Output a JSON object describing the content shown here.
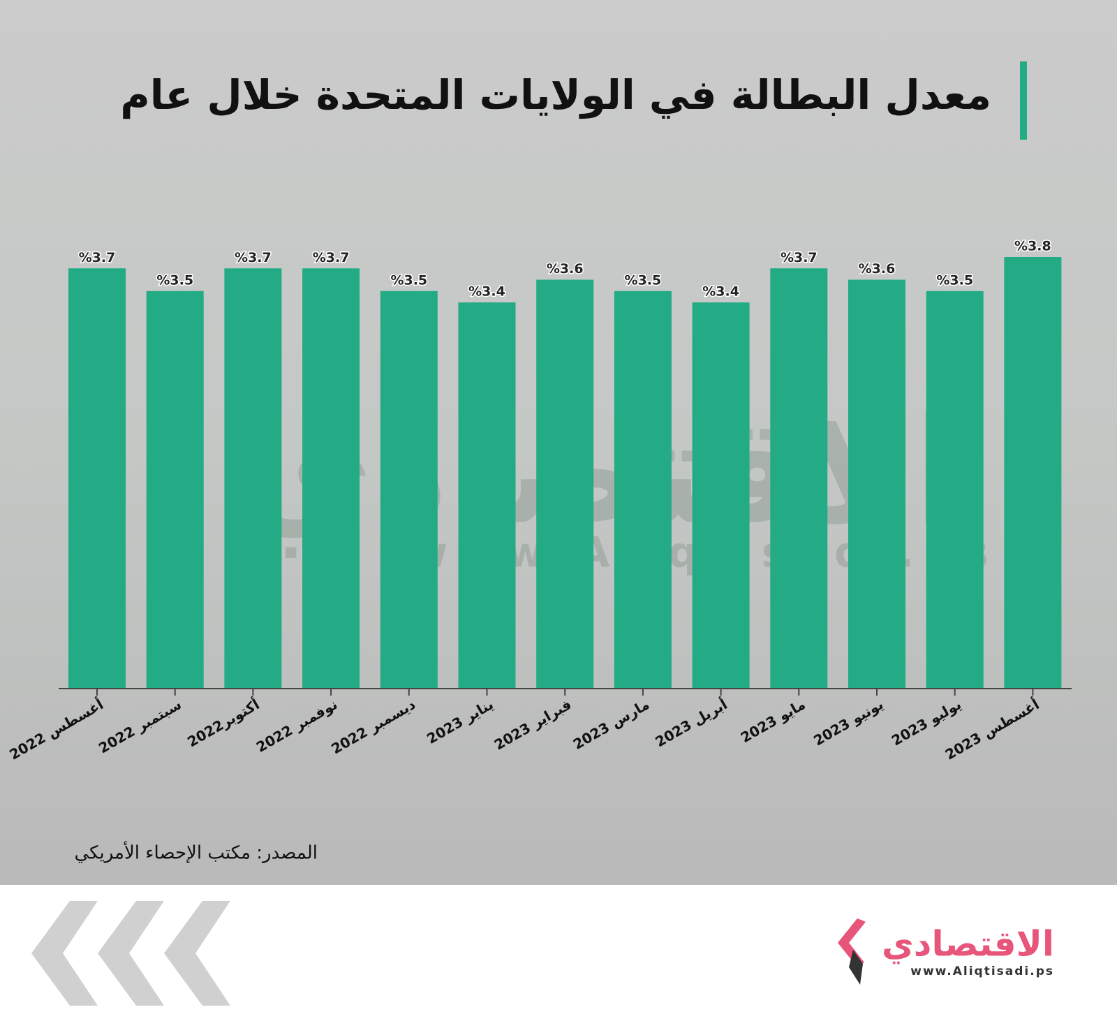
{
  "chart_data": {
    "type": "bar",
    "title": "معدل البطالة في الولايات المتحدة خلال عام",
    "categories": [
      "أغسطس 2022",
      "سبتمبر 2022",
      "أكتوبر2022",
      "نوفمبر 2022",
      "ديسمبر 2022",
      "يناير 2023",
      "فبراير 2023",
      "مارس 2023",
      "أبريل 2023",
      "مايو 2023",
      "يونيو 2023",
      "يوليو 2023",
      "أغسطس 2023"
    ],
    "values": [
      3.7,
      3.5,
      3.7,
      3.7,
      3.5,
      3.4,
      3.6,
      3.5,
      3.4,
      3.7,
      3.6,
      3.5,
      3.8
    ],
    "value_labels": [
      "%3.7",
      "%3.5",
      "%3.7",
      "%3.7",
      "%3.5",
      "%3.4",
      "%3.6",
      "%3.5",
      "%3.4",
      "%3.7",
      "%3.6",
      "%3.5",
      "%3.8"
    ],
    "color": "#22ab84",
    "ylim": [
      0,
      3.8
    ],
    "source": "المصدر: مكتب الإحصاء الأمريكي"
  },
  "watermark": {
    "name": "الاقتصادي",
    "url": "www.Aliqtisadi.ps"
  },
  "logo": {
    "name": "الاقتصادي",
    "url": "www.Aliqtisadi.ps"
  }
}
